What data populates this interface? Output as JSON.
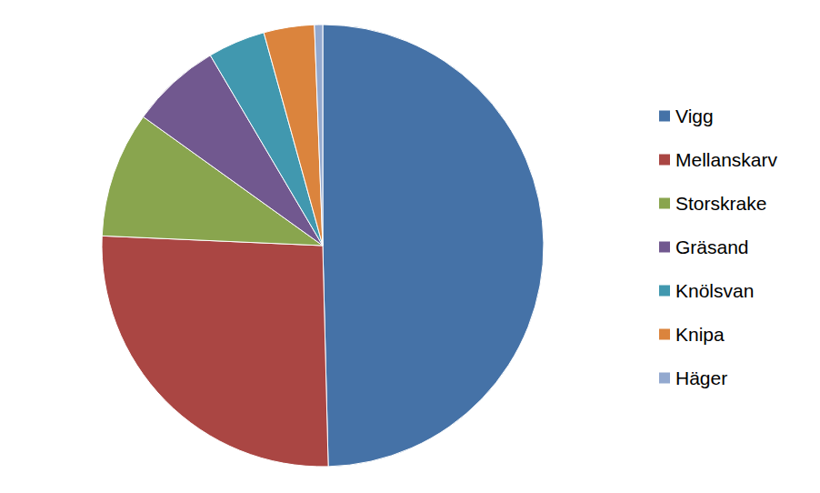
{
  "chart_data": {
    "type": "pie",
    "categories": [
      "Vigg",
      "Mellanskarv",
      "Storskrake",
      "Gräsand",
      "Knölsvan",
      "Knipa",
      "Häger"
    ],
    "values": [
      49.6,
      26.1,
      9.2,
      6.6,
      4.2,
      3.7,
      0.6
    ],
    "colors": [
      "#4572a7",
      "#aa4643",
      "#89a54e",
      "#71588f",
      "#4198af",
      "#db843d",
      "#93a9cf"
    ],
    "legend": "right",
    "data_labels": false
  }
}
